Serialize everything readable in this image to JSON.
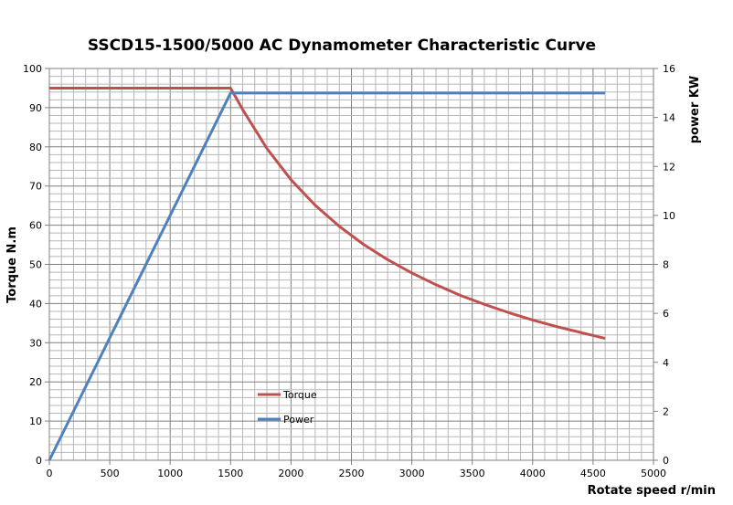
{
  "chart_data": {
    "type": "line",
    "title": "SSCD15-1500/5000 AC Dynamometer Characteristic Curve",
    "xlabel": "Rotate speed r/min",
    "ylabel": "Torque N.m",
    "y2label": "power KW",
    "xlim": [
      0,
      5000
    ],
    "ylim": [
      0,
      100
    ],
    "y2lim": [
      0,
      16
    ],
    "xticks": [
      0,
      500,
      1000,
      1500,
      2000,
      2500,
      3000,
      3500,
      4000,
      4500,
      5000
    ],
    "yticks": [
      0,
      10,
      20,
      30,
      40,
      50,
      60,
      70,
      80,
      90,
      100
    ],
    "y2ticks": [
      0,
      2,
      4,
      6,
      8,
      10,
      12,
      14,
      16
    ],
    "grid": true,
    "legend_position": "lower-left-inside",
    "series": [
      {
        "name": "Torque",
        "axis": "left",
        "color": "#c0504d",
        "x": [
          0,
          1500,
          1600,
          1800,
          2000,
          2200,
          2400,
          2600,
          2800,
          3000,
          3200,
          3400,
          3600,
          3800,
          4000,
          4200,
          4400,
          4600
        ],
        "y": [
          95,
          95,
          89.5,
          79.6,
          71.6,
          65.1,
          59.7,
          55.1,
          51.2,
          47.8,
          44.8,
          42.1,
          39.8,
          37.7,
          35.8,
          34.1,
          32.6,
          31.1
        ]
      },
      {
        "name": "Power",
        "axis": "right",
        "color": "#4f81bd",
        "x": [
          0,
          1500,
          4600
        ],
        "y": [
          0,
          15,
          15
        ]
      }
    ]
  }
}
